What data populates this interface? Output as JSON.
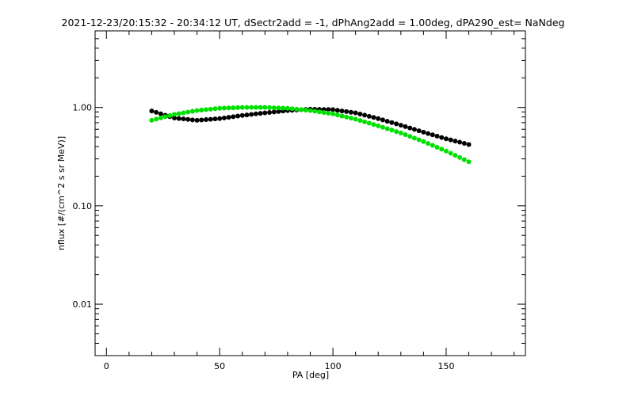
{
  "chart_data": {
    "type": "scatter",
    "title": "2021-12-23/20:15:32 - 20:34:12 UT, dSectr2add = -1, dPhAng2add = 1.00deg, dPA290_est=    NaNdeg",
    "xlabel": "PA [deg]",
    "ylabel": "nflux [#/(cm^2 s sr MeV)]",
    "xlim": [
      -5,
      185
    ],
    "ylim": [
      0.003,
      6
    ],
    "yscale": "log",
    "grid": false,
    "x_ticks": [
      0,
      50,
      100,
      150
    ],
    "x_tick_labels": [
      "0",
      "50",
      "100",
      "150"
    ],
    "y_ticks": [
      1.0,
      0.1,
      0.01
    ],
    "y_tick_labels": [
      "1.00",
      "0.10",
      "0.01"
    ],
    "series": [
      {
        "color": "#000000",
        "x": [
          20,
          30,
          40,
          50,
          60,
          70,
          80,
          90,
          100,
          110,
          120,
          130,
          140,
          150,
          160
        ],
        "y": [
          0.92,
          0.78,
          0.74,
          0.77,
          0.83,
          0.88,
          0.93,
          0.96,
          0.95,
          0.88,
          0.77,
          0.66,
          0.56,
          0.48,
          0.42
        ]
      },
      {
        "color": "#00e000",
        "x": [
          20,
          30,
          40,
          50,
          60,
          70,
          80,
          90,
          100,
          110,
          120,
          130,
          140,
          150,
          160
        ],
        "y": [
          0.74,
          0.85,
          0.93,
          0.98,
          1.0,
          1.0,
          0.98,
          0.93,
          0.86,
          0.76,
          0.65,
          0.55,
          0.45,
          0.36,
          0.28
        ]
      }
    ]
  }
}
